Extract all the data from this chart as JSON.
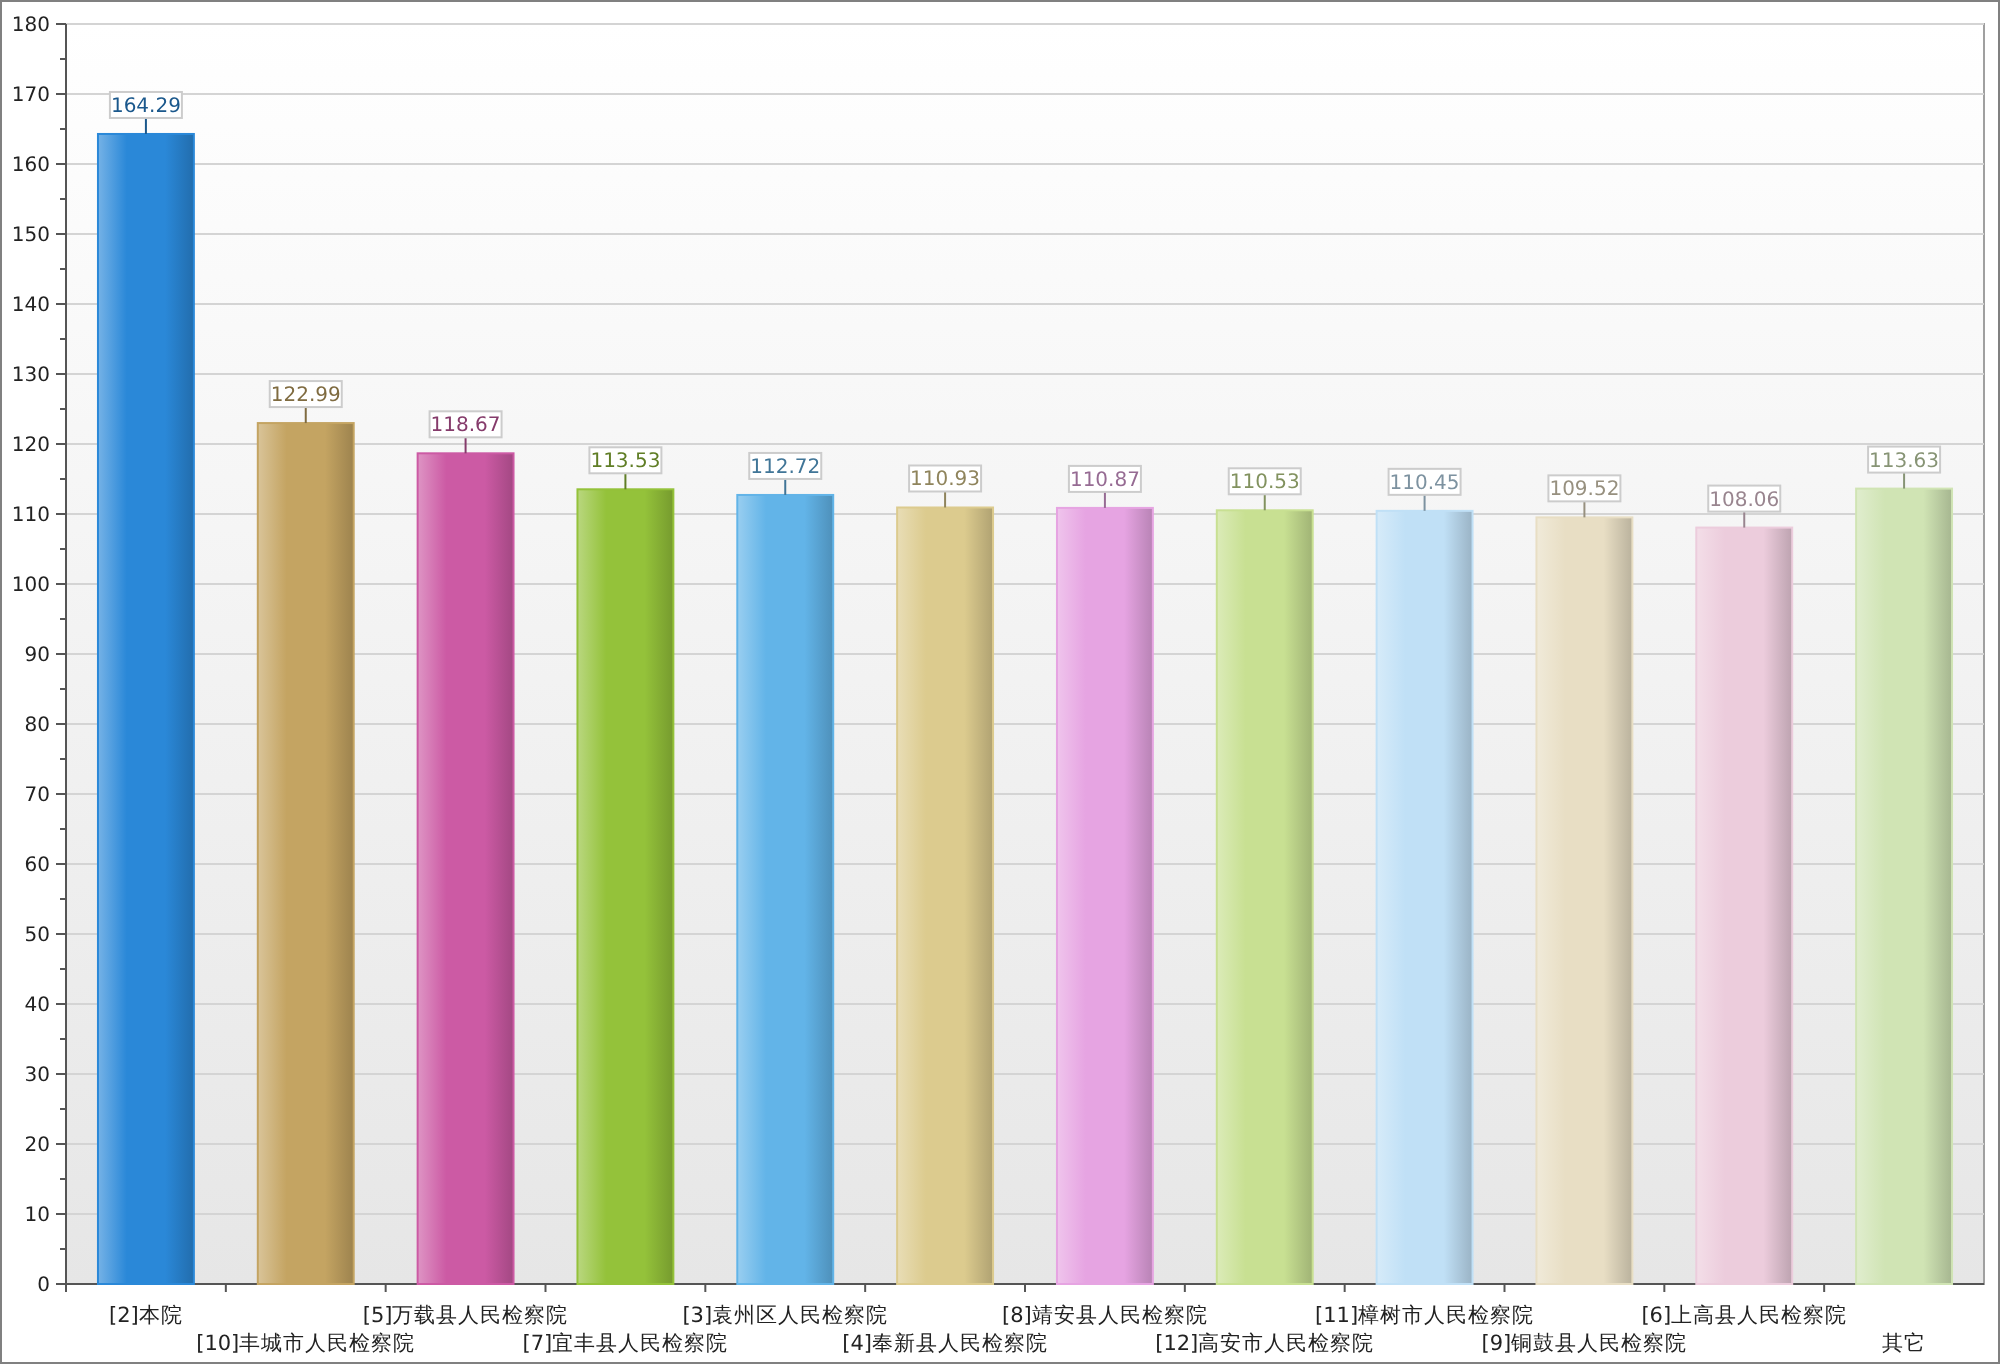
{
  "chart_data": {
    "type": "bar",
    "categories": [
      "[2]本院",
      "[10]丰城市人民检察院",
      "[5]万载县人民检察院",
      "[7]宜丰县人民检察院",
      "[3]袁州区人民检察院",
      "[4]奉新县人民检察院",
      "[8]靖安县人民检察院",
      "[12]高安市人民检察院",
      "[11]樟树市人民检察院",
      "[9]铜鼓县人民检察院",
      "[6]上高县人民检察院",
      "其它"
    ],
    "values": [
      164.29,
      122.99,
      118.67,
      113.53,
      112.72,
      110.93,
      110.87,
      110.53,
      110.45,
      109.52,
      108.06,
      113.63
    ],
    "colors": [
      "#2a88d8",
      "#c4a462",
      "#cc5aa4",
      "#94c23a",
      "#62b4e8",
      "#dccb8e",
      "#e6a4e2",
      "#c8e092",
      "#c0e0f6",
      "#e8dec4",
      "#ecccdc",
      "#d0e4b4"
    ],
    "ylim": [
      0,
      180
    ],
    "yticks": [
      0,
      10,
      20,
      30,
      40,
      50,
      60,
      70,
      80,
      90,
      100,
      110,
      120,
      130,
      140,
      150,
      160,
      170,
      180
    ],
    "grid": "y",
    "data_labels": true
  }
}
